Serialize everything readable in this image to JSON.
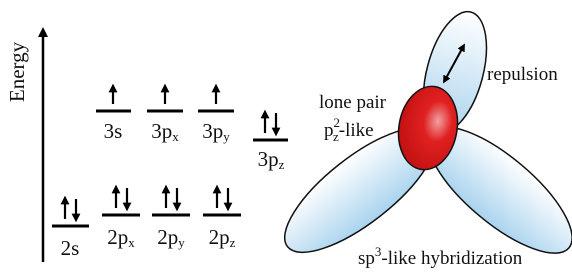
{
  "energy_axis": {
    "label": "Energy"
  },
  "upper_levels": [
    {
      "orbital": "3s"
    },
    {
      "orbital": "3p",
      "subscript": "x"
    },
    {
      "orbital": "3p",
      "subscript": "y"
    },
    {
      "orbital": "3p",
      "subscript": "z"
    }
  ],
  "lower_levels": [
    {
      "orbital": "2s"
    },
    {
      "orbital": "2p",
      "subscript": "x"
    },
    {
      "orbital": "2p",
      "subscript": "y"
    },
    {
      "orbital": "2p",
      "subscript": "z"
    }
  ],
  "annotations": {
    "repulsion": "repulsion",
    "lone_pair": "lone pair",
    "pz2": {
      "base": "p",
      "superscript": "2",
      "subscript": "z",
      "suffix": "-like"
    },
    "hybridization": {
      "base": "sp",
      "superscript": "3",
      "suffix": "-like hybridization"
    }
  }
}
